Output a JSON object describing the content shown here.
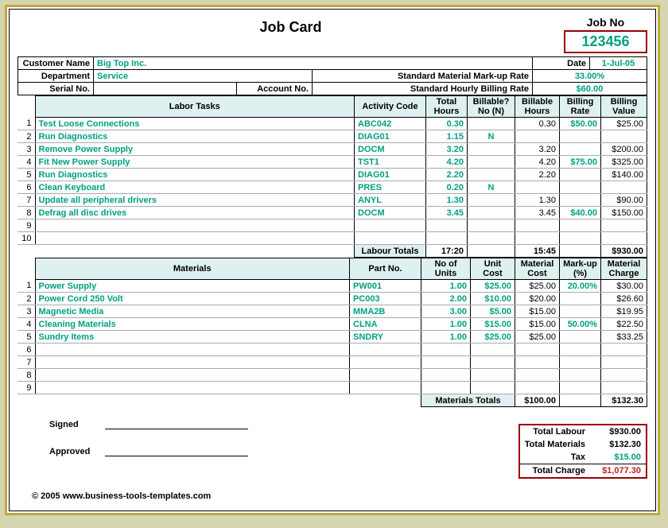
{
  "title": "Job Card",
  "job_no_label": "Job No",
  "job_no": "123456",
  "meta": {
    "customer_name_label": "Customer Name",
    "customer_name": "Big Top Inc.",
    "date_label": "Date",
    "date": "1-Jul-05",
    "department_label": "Department",
    "department": "Service",
    "markup_rate_label": "Standard Material Mark-up Rate",
    "markup_rate": "33.00%",
    "serial_label": "Serial No.",
    "serial": "",
    "account_label": "Account No.",
    "account": "",
    "billing_rate_label": "Standard Hourly Billing Rate",
    "billing_rate": "$60.00"
  },
  "labor": {
    "headers": [
      "Labor Tasks",
      "Activity Code",
      "Total Hours",
      "Billable? No (N)",
      "Billable Hours",
      "Billing Rate",
      "Billing Value"
    ],
    "rows": [
      {
        "n": "1",
        "task": "Test Loose Connections",
        "code": "ABC042",
        "th": "0.30",
        "bn": "",
        "bh": "0.30",
        "rate": "$50.00",
        "val": "$25.00"
      },
      {
        "n": "2",
        "task": "Run Diagnostics",
        "code": "DIAG01",
        "th": "1.15",
        "bn": "N",
        "bh": "",
        "rate": "",
        "val": ""
      },
      {
        "n": "3",
        "task": "Remove Power Supply",
        "code": "DOCM",
        "th": "3.20",
        "bn": "",
        "bh": "3.20",
        "rate": "",
        "val": "$200.00"
      },
      {
        "n": "4",
        "task": "Fit New Power Supply",
        "code": "TST1",
        "th": "4.20",
        "bn": "",
        "bh": "4.20",
        "rate": "$75.00",
        "val": "$325.00"
      },
      {
        "n": "5",
        "task": "Run Diagnostics",
        "code": "DIAG01",
        "th": "2.20",
        "bn": "",
        "bh": "2.20",
        "rate": "",
        "val": "$140.00"
      },
      {
        "n": "6",
        "task": "Clean Keyboard",
        "code": "PRES",
        "th": "0.20",
        "bn": "N",
        "bh": "",
        "rate": "",
        "val": ""
      },
      {
        "n": "7",
        "task": "Update all peripheral drivers",
        "code": "ANYL",
        "th": "1.30",
        "bn": "",
        "bh": "1.30",
        "rate": "",
        "val": "$90.00"
      },
      {
        "n": "8",
        "task": "Defrag all disc drives",
        "code": "DOCM",
        "th": "3.45",
        "bn": "",
        "bh": "3.45",
        "rate": "$40.00",
        "val": "$150.00"
      },
      {
        "n": "9",
        "task": "",
        "code": "",
        "th": "",
        "bn": "",
        "bh": "",
        "rate": "",
        "val": ""
      },
      {
        "n": "10",
        "task": "",
        "code": "",
        "th": "",
        "bn": "",
        "bh": "",
        "rate": "",
        "val": ""
      }
    ],
    "totals": {
      "label": "Labour Totals",
      "th": "17:20",
      "bh": "15:45",
      "val": "$930.00"
    }
  },
  "materials": {
    "headers": [
      "Materials",
      "Part No.",
      "No of Units",
      "Unit Cost",
      "Material Cost",
      "Mark-up (%)",
      "Material Charge"
    ],
    "rows": [
      {
        "n": "1",
        "mat": "Power Supply",
        "part": "PW001",
        "units": "1.00",
        "uc": "$25.00",
        "mc": "$25.00",
        "mu": "20.00%",
        "chg": "$30.00"
      },
      {
        "n": "2",
        "mat": "Power Cord 250 Volt",
        "part": "PC003",
        "units": "2.00",
        "uc": "$10.00",
        "mc": "$20.00",
        "mu": "",
        "chg": "$26.60"
      },
      {
        "n": "3",
        "mat": "Magnetic Media",
        "part": "MMA2B",
        "units": "3.00",
        "uc": "$5.00",
        "mc": "$15.00",
        "mu": "",
        "chg": "$19.95"
      },
      {
        "n": "4",
        "mat": "Cleaning Materials",
        "part": "CLNA",
        "units": "1.00",
        "uc": "$15.00",
        "mc": "$15.00",
        "mu": "50.00%",
        "chg": "$22.50"
      },
      {
        "n": "5",
        "mat": "Sundry Items",
        "part": "SNDRY",
        "units": "1.00",
        "uc": "$25.00",
        "mc": "$25.00",
        "mu": "",
        "chg": "$33.25"
      },
      {
        "n": "6",
        "mat": "",
        "part": "",
        "units": "",
        "uc": "",
        "mc": "",
        "mu": "",
        "chg": ""
      },
      {
        "n": "7",
        "mat": "",
        "part": "",
        "units": "",
        "uc": "",
        "mc": "",
        "mu": "",
        "chg": ""
      },
      {
        "n": "8",
        "mat": "",
        "part": "",
        "units": "",
        "uc": "",
        "mc": "",
        "mu": "",
        "chg": ""
      },
      {
        "n": "9",
        "mat": "",
        "part": "",
        "units": "",
        "uc": "",
        "mc": "",
        "mu": "",
        "chg": ""
      }
    ],
    "totals": {
      "label": "Materials Totals",
      "mc": "$100.00",
      "chg": "$132.30"
    }
  },
  "signatures": {
    "signed": "Signed",
    "approved": "Approved"
  },
  "summary": {
    "labour_label": "Total Labour",
    "labour": "$930.00",
    "materials_label": "Total Materials",
    "materials": "$132.30",
    "tax_label": "Tax",
    "tax": "$15.00",
    "total_label": "Total Charge",
    "total": "$1,077.30"
  },
  "copyright": "© 2005 www.business-tools-templates.com",
  "colors": {
    "teal": "#00a080",
    "red": "#c02020",
    "hdr_bg": "#dff0f0",
    "frame": "#c0a840",
    "totals_border": "#900"
  }
}
